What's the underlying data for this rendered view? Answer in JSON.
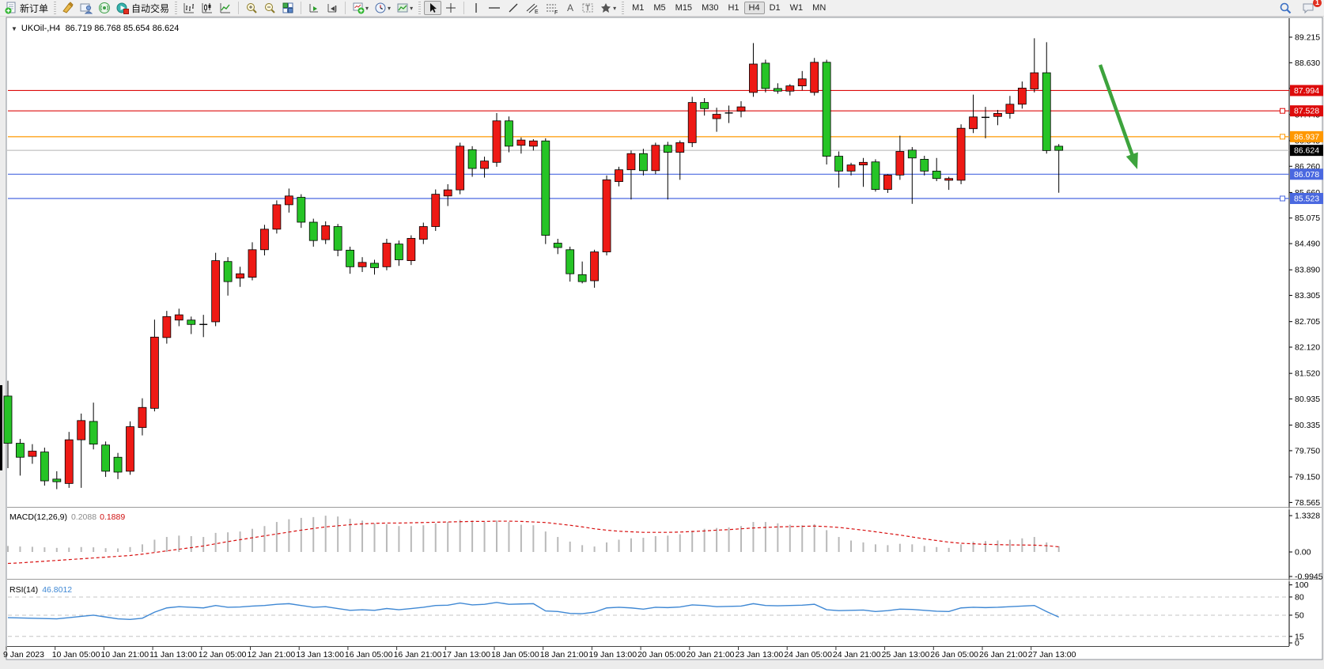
{
  "toolbar": {
    "new_order_label": "新订单",
    "auto_trading_label": "自动交易",
    "timeframes": [
      "M1",
      "M5",
      "M15",
      "M30",
      "H1",
      "H4",
      "D1",
      "W1",
      "MN"
    ],
    "active_timeframe": "H4",
    "notification_count": "1",
    "icon_names": [
      "new-order",
      "metaeditor",
      "profile",
      "broadcast",
      "auto-trading",
      "chart-bars",
      "chart-candles",
      "chart-line",
      "zoom-in",
      "zoom-out",
      "tile-windows",
      "auto-scroll",
      "chart-shift",
      "new-chart",
      "periods",
      "templates",
      "cursor",
      "crosshair",
      "vertical-line",
      "horizontal-line",
      "trendline",
      "equidistant-channel",
      "fibonacci",
      "text",
      "text-label",
      "arrows",
      "search",
      "notifications"
    ]
  },
  "chart": {
    "collapse_arrow": "▼",
    "symbol": "UKOil-,H4",
    "ohlc": "86.719 86.768 85.654 86.624"
  },
  "indicators": {
    "macd": {
      "label": "MACD(12,26,9)",
      "value_main": "0.2088",
      "value_signal": "0.1889"
    },
    "rsi": {
      "label": "RSI(14)",
      "value": "46.8012"
    }
  },
  "chart_data": {
    "type": "candlestick",
    "symbol": "UKOil-",
    "timeframe": "H4",
    "bull_color": "#ee1a15",
    "bear_color": "#26c426",
    "price_axis": {
      "min": 78.565,
      "max": 89.215,
      "ticks": [
        89.215,
        88.63,
        88.045,
        87.445,
        86.845,
        86.26,
        85.66,
        85.075,
        84.49,
        83.89,
        83.305,
        82.705,
        82.12,
        81.52,
        80.935,
        80.335,
        79.75,
        79.15,
        78.565
      ]
    },
    "time_axis": [
      "9 Jan 2023",
      "10 Jan 05:00",
      "10 Jan 21:00",
      "11 Jan 13:00",
      "12 Jan 05:00",
      "12 Jan 21:00",
      "13 Jan 13:00",
      "16 Jan 05:00",
      "16 Jan 21:00",
      "17 Jan 13:00",
      "18 Jan 05:00",
      "18 Jan 21:00",
      "19 Jan 13:00",
      "20 Jan 05:00",
      "20 Jan 21:00",
      "23 Jan 13:00",
      "24 Jan 05:00",
      "24 Jan 21:00",
      "25 Jan 13:00",
      "26 Jan 05:00",
      "26 Jan 21:00",
      "27 Jan 13:00"
    ],
    "candles": [
      [
        81.0,
        81.35,
        79.35,
        79.92
      ],
      [
        79.92,
        80.02,
        79.18,
        79.6
      ],
      [
        79.62,
        79.9,
        79.45,
        79.74
      ],
      [
        79.72,
        79.82,
        78.95,
        79.06
      ],
      [
        79.1,
        79.28,
        78.87,
        79.04
      ],
      [
        79.0,
        80.18,
        78.9,
        80.0
      ],
      [
        80.0,
        80.6,
        78.9,
        80.44
      ],
      [
        80.42,
        80.85,
        79.78,
        79.9
      ],
      [
        79.88,
        79.96,
        79.15,
        79.28
      ],
      [
        79.6,
        79.7,
        79.1,
        79.26
      ],
      [
        79.28,
        80.42,
        79.2,
        80.3
      ],
      [
        80.28,
        80.95,
        80.1,
        80.74
      ],
      [
        80.72,
        82.75,
        80.65,
        82.35
      ],
      [
        82.34,
        82.95,
        82.2,
        82.82
      ],
      [
        82.74,
        83.0,
        82.6,
        82.86
      ],
      [
        82.74,
        82.82,
        82.42,
        82.64
      ],
      [
        82.64,
        82.86,
        82.35,
        82.64
      ],
      [
        82.7,
        84.28,
        82.6,
        84.1
      ],
      [
        84.08,
        84.18,
        83.3,
        83.62
      ],
      [
        83.7,
        83.96,
        83.5,
        83.8
      ],
      [
        83.72,
        84.52,
        83.65,
        84.35
      ],
      [
        84.35,
        84.92,
        84.22,
        84.82
      ],
      [
        84.82,
        85.48,
        84.72,
        85.38
      ],
      [
        85.38,
        85.75,
        85.2,
        85.58
      ],
      [
        85.55,
        85.62,
        84.85,
        84.98
      ],
      [
        84.98,
        85.06,
        84.42,
        84.56
      ],
      [
        84.58,
        85.0,
        84.48,
        84.9
      ],
      [
        84.88,
        84.94,
        84.2,
        84.34
      ],
      [
        84.34,
        84.42,
        83.8,
        83.96
      ],
      [
        83.96,
        84.18,
        83.84,
        84.06
      ],
      [
        84.04,
        84.12,
        83.78,
        83.94
      ],
      [
        83.96,
        84.6,
        83.88,
        84.5
      ],
      [
        84.48,
        84.56,
        83.98,
        84.12
      ],
      [
        84.1,
        84.68,
        84.0,
        84.61
      ],
      [
        84.59,
        84.97,
        84.48,
        84.88
      ],
      [
        84.88,
        85.73,
        84.78,
        85.62
      ],
      [
        85.58,
        85.85,
        85.35,
        85.72
      ],
      [
        85.72,
        86.8,
        85.62,
        86.72
      ],
      [
        86.64,
        86.72,
        86.02,
        86.21
      ],
      [
        86.21,
        86.48,
        86.0,
        86.38
      ],
      [
        86.35,
        87.48,
        86.25,
        87.3
      ],
      [
        87.3,
        87.4,
        86.58,
        86.72
      ],
      [
        86.74,
        86.92,
        86.55,
        86.86
      ],
      [
        86.72,
        86.88,
        86.62,
        86.84
      ],
      [
        86.84,
        86.9,
        84.48,
        84.68
      ],
      [
        84.5,
        84.6,
        84.25,
        84.4
      ],
      [
        84.35,
        84.42,
        83.62,
        83.8
      ],
      [
        83.78,
        84.08,
        83.58,
        83.62
      ],
      [
        83.64,
        84.35,
        83.48,
        84.3
      ],
      [
        84.3,
        86.05,
        84.22,
        85.95
      ],
      [
        85.91,
        86.25,
        85.8,
        86.18
      ],
      [
        86.18,
        86.62,
        85.5,
        86.55
      ],
      [
        86.55,
        86.66,
        86.05,
        86.16
      ],
      [
        86.16,
        86.8,
        86.08,
        86.74
      ],
      [
        86.74,
        86.82,
        85.5,
        86.58
      ],
      [
        86.58,
        86.85,
        85.95,
        86.8
      ],
      [
        86.8,
        87.85,
        86.7,
        87.72
      ],
      [
        87.72,
        87.82,
        87.42,
        87.58
      ],
      [
        87.35,
        87.6,
        87.05,
        87.45
      ],
      [
        87.48,
        87.65,
        87.25,
        87.48
      ],
      [
        87.52,
        87.75,
        87.38,
        87.62
      ],
      [
        87.95,
        89.08,
        87.85,
        88.6
      ],
      [
        88.62,
        88.7,
        87.95,
        88.04
      ],
      [
        88.04,
        88.16,
        87.92,
        87.98
      ],
      [
        87.98,
        88.14,
        87.88,
        88.1
      ],
      [
        88.1,
        88.44,
        88.0,
        88.26
      ],
      [
        87.95,
        88.74,
        87.88,
        88.64
      ],
      [
        88.64,
        88.7,
        86.3,
        86.49
      ],
      [
        86.49,
        86.6,
        85.77,
        86.15
      ],
      [
        86.15,
        86.34,
        86.05,
        86.29
      ],
      [
        86.29,
        86.45,
        85.79,
        86.35
      ],
      [
        86.36,
        86.42,
        85.68,
        85.73
      ],
      [
        85.73,
        86.08,
        85.65,
        86.06
      ],
      [
        86.06,
        86.96,
        85.95,
        86.6
      ],
      [
        86.63,
        86.7,
        85.4,
        86.45
      ],
      [
        86.42,
        86.5,
        86.05,
        86.15
      ],
      [
        86.15,
        86.45,
        85.92,
        85.98
      ],
      [
        85.94,
        86.02,
        85.72,
        85.98
      ],
      [
        85.94,
        87.22,
        85.85,
        87.13
      ],
      [
        87.12,
        87.9,
        87.02,
        87.39
      ],
      [
        87.38,
        87.62,
        86.9,
        87.38
      ],
      [
        87.4,
        87.55,
        87.2,
        87.47
      ],
      [
        87.47,
        87.87,
        87.35,
        87.68
      ],
      [
        87.68,
        88.2,
        87.58,
        88.05
      ],
      [
        88.03,
        89.19,
        87.95,
        88.4
      ],
      [
        88.4,
        89.1,
        86.55,
        86.62
      ],
      [
        86.719,
        86.768,
        85.654,
        86.624
      ]
    ],
    "current_price": 86.624,
    "current_price_label": "86.624",
    "hlines": [
      {
        "price": 87.994,
        "label": "87.994",
        "color": "#dd0b0b",
        "handle": false
      },
      {
        "price": 87.528,
        "label": "87.528",
        "color": "#dd0b0b",
        "handle": true
      },
      {
        "price": 86.937,
        "label": "86.937",
        "color": "#ff9800",
        "handle": true
      },
      {
        "price": 86.078,
        "label": "86.078",
        "color": "#4a68e0",
        "handle": false
      },
      {
        "price": 85.523,
        "label": "85.523",
        "color": "#4a68e0",
        "handle": true
      }
    ],
    "arrow": {
      "from": [
        1391,
        61
      ],
      "to": [
        1438,
        193
      ],
      "color": "#3da33d"
    },
    "macd": {
      "histogram": [
        0.22,
        0.2,
        0.19,
        0.17,
        0.15,
        0.16,
        0.18,
        0.17,
        0.14,
        0.13,
        0.18,
        0.28,
        0.45,
        0.55,
        0.6,
        0.58,
        0.55,
        0.7,
        0.72,
        0.75,
        0.85,
        0.95,
        1.1,
        1.2,
        1.25,
        1.28,
        1.33,
        1.3,
        1.22,
        1.15,
        1.05,
        1.02,
        0.95,
        0.95,
        0.98,
        1.05,
        1.1,
        1.18,
        1.15,
        1.1,
        1.15,
        1.1,
        1.0,
        0.98,
        0.75,
        0.55,
        0.38,
        0.25,
        0.2,
        0.35,
        0.45,
        0.5,
        0.52,
        0.58,
        0.6,
        0.65,
        0.78,
        0.85,
        0.88,
        0.9,
        0.95,
        1.1,
        1.1,
        1.05,
        1.0,
        0.98,
        1.02,
        0.8,
        0.55,
        0.42,
        0.35,
        0.28,
        0.25,
        0.3,
        0.28,
        0.22,
        0.18,
        0.15,
        0.28,
        0.38,
        0.4,
        0.42,
        0.45,
        0.5,
        0.55,
        0.35,
        0.21
      ],
      "signal": [
        -0.42,
        -0.4,
        -0.37,
        -0.34,
        -0.31,
        -0.28,
        -0.25,
        -0.22,
        -0.19,
        -0.16,
        -0.13,
        -0.08,
        -0.02,
        0.04,
        0.1,
        0.16,
        0.22,
        0.3,
        0.38,
        0.45,
        0.52,
        0.59,
        0.66,
        0.73,
        0.8,
        0.86,
        0.92,
        0.96,
        1.0,
        1.03,
        1.05,
        1.06,
        1.06,
        1.07,
        1.08,
        1.09,
        1.1,
        1.11,
        1.12,
        1.12,
        1.13,
        1.13,
        1.12,
        1.1,
        1.08,
        1.03,
        0.98,
        0.92,
        0.85,
        0.8,
        0.76,
        0.74,
        0.72,
        0.72,
        0.72,
        0.73,
        0.75,
        0.77,
        0.8,
        0.82,
        0.85,
        0.88,
        0.9,
        0.92,
        0.93,
        0.94,
        0.95,
        0.93,
        0.9,
        0.85,
        0.8,
        0.74,
        0.68,
        0.62,
        0.55,
        0.48,
        0.42,
        0.36,
        0.32,
        0.3,
        0.28,
        0.27,
        0.26,
        0.255,
        0.25,
        0.23,
        0.19
      ],
      "axis_labels": [
        "1.3328",
        "0.00",
        "-0.9945"
      ],
      "axis_values": [
        1.3328,
        0,
        -0.9945
      ]
    },
    "rsi": {
      "values": [
        46,
        45.5,
        45,
        44.5,
        44,
        46,
        48,
        50,
        47,
        44,
        43,
        45,
        55,
        62,
        64,
        63,
        62,
        66,
        63,
        63.5,
        65,
        66,
        68,
        69,
        66,
        63,
        64,
        61,
        58,
        59,
        58,
        61,
        59,
        61,
        63,
        66,
        66.5,
        70,
        67,
        68,
        71,
        68,
        68.5,
        69,
        57,
        56,
        53,
        52.5,
        55,
        62,
        63,
        62,
        60,
        63,
        62.5,
        63.5,
        67,
        66,
        64,
        64.5,
        65,
        69,
        66,
        65.5,
        66,
        66.5,
        68,
        59,
        57.5,
        58,
        58.5,
        56,
        57.5,
        60,
        59.5,
        58,
        56.5,
        56,
        62,
        63,
        62.5,
        63,
        64,
        65,
        66,
        56,
        46.8
      ],
      "levels": [
        80,
        50,
        15
      ],
      "axis_labels": [
        "100",
        "80",
        "50",
        "15",
        "0"
      ],
      "axis_values": [
        100,
        80,
        50,
        15,
        0
      ]
    }
  }
}
